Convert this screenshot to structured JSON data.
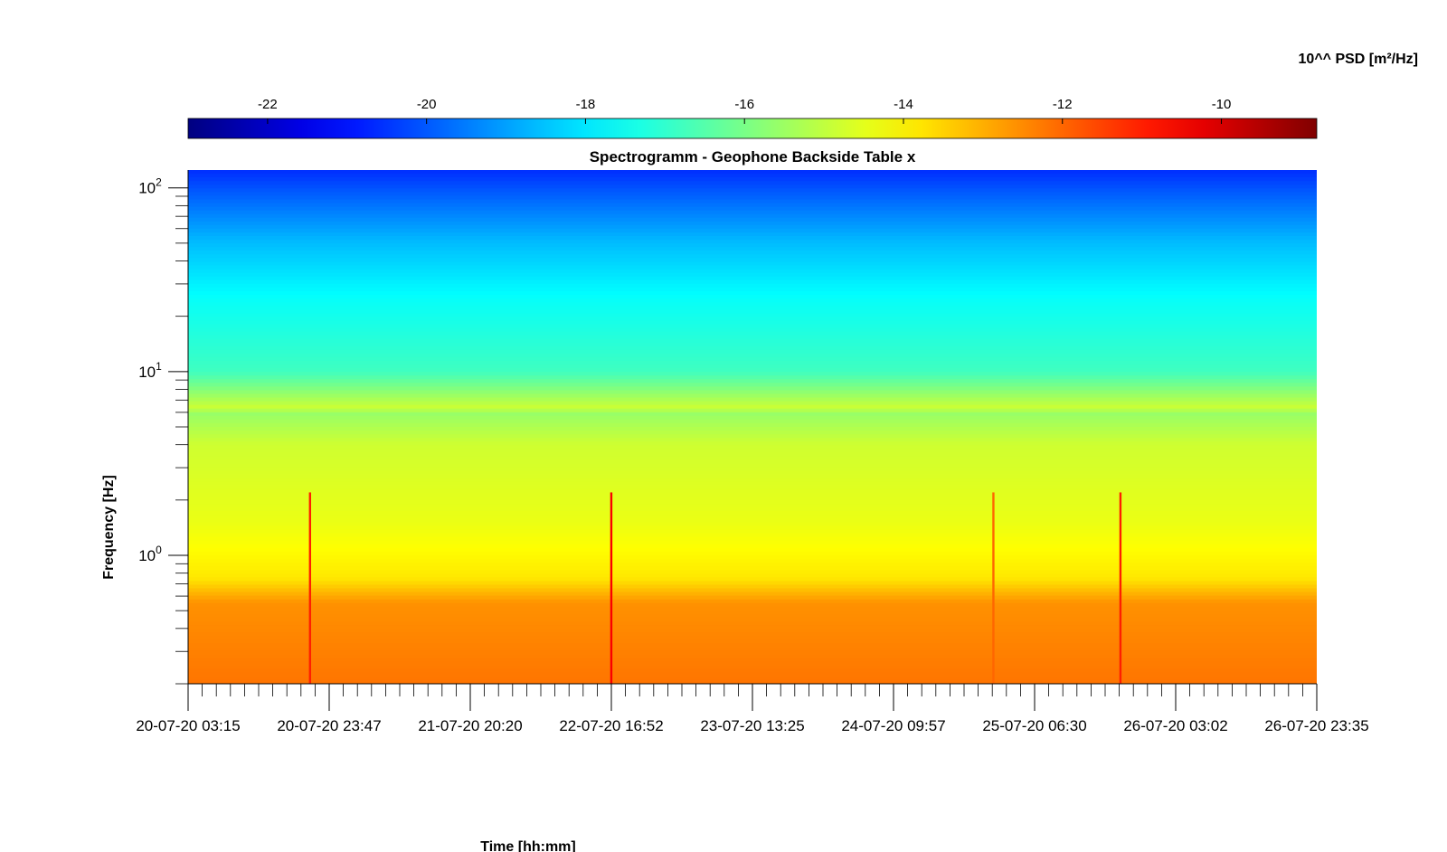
{
  "chart_data": {
    "type": "heatmap",
    "title": "Spectrogramm - Geophone Backside Table x",
    "xlabel": "Time [hh:mm]",
    "ylabel": "Frequency [Hz]",
    "y_scale": "log",
    "y_tick_labels": [
      "10^0",
      "10^1",
      "10^2"
    ],
    "y_ticks": [
      1,
      10,
      100
    ],
    "ylim": [
      0.2,
      125
    ],
    "x_tick_labels": [
      "20-07-20 03:15",
      "20-07-20 23:47",
      "21-07-20 20:20",
      "22-07-20 16:52",
      "23-07-20 13:25",
      "24-07-20 09:57",
      "25-07-20 06:30",
      "26-07-20 03:02",
      "26-07-20 23:35"
    ],
    "colorbar": {
      "label": "10^^ PSD [m²/Hz]",
      "ticks": [
        -22,
        -20,
        -18,
        -16,
        -14,
        -12,
        -10
      ],
      "range": [
        -23,
        -8.8
      ],
      "colormap": "jet"
    },
    "grid": false,
    "spectral_levels_log10_psd": [
      {
        "freq_hz": 0.2,
        "level": -12.2
      },
      {
        "freq_hz": 0.55,
        "level": -12.6
      },
      {
        "freq_hz": 0.75,
        "level": -13.8
      },
      {
        "freq_hz": 1.5,
        "level": -14.4
      },
      {
        "freq_hz": 4,
        "level": -14.8
      },
      {
        "freq_hz": 6,
        "level": -15.6
      },
      {
        "freq_hz": 6.3,
        "level": -14.8
      },
      {
        "freq_hz": 10,
        "level": -16.8
      },
      {
        "freq_hz": 25,
        "level": -17.6
      },
      {
        "freq_hz": 50,
        "level": -18.6
      },
      {
        "freq_hz": 80,
        "level": -19.6
      },
      {
        "freq_hz": 125,
        "level": -20.6
      }
    ],
    "transient_events": [
      {
        "time": "20-07-20 21:00",
        "level": -11.0
      },
      {
        "time": "22-07-20 16:52",
        "level": -10.5
      },
      {
        "time": "25-07-20 00:30",
        "level": -12.0
      },
      {
        "time": "25-07-20 19:00",
        "level": -11.0
      }
    ]
  }
}
